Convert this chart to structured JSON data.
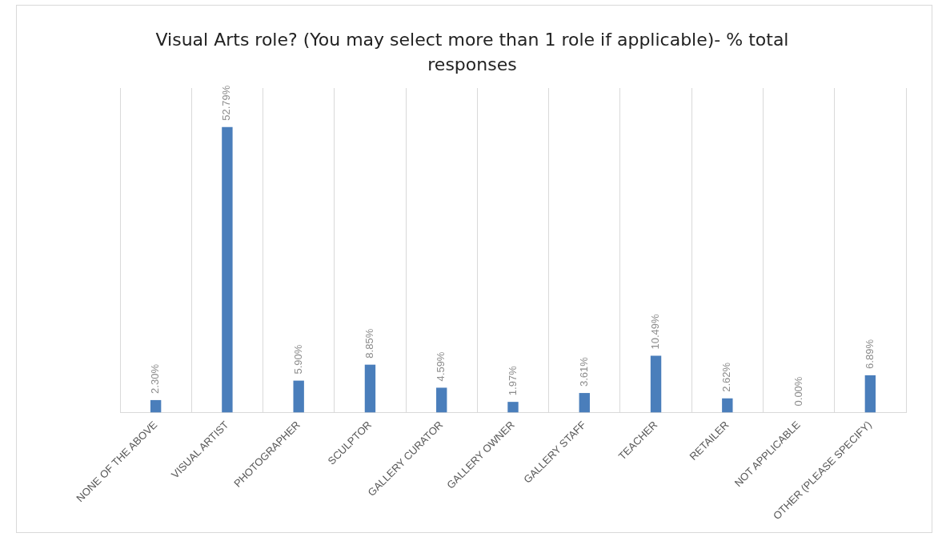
{
  "chart_data": {
    "type": "bar",
    "title": "Visual Arts role? (You may select more than 1 role if applicable)- % total responses",
    "categories": [
      "NONE OF THE ABOVE",
      "VISUAL ARTIST",
      "PHOTOGRAPHER",
      "SCULPTOR",
      "GALLERY CURATOR",
      "GALLERY OWNER",
      "GALLERY STAFF",
      "TEACHER",
      "RETAILER",
      "NOT APPLICABLE",
      "OTHER (PLEASE SPECIFY)"
    ],
    "values": [
      2.3,
      52.79,
      5.9,
      8.85,
      4.59,
      1.97,
      3.61,
      10.49,
      2.62,
      0.0,
      6.89
    ],
    "value_labels": [
      "2.30%",
      "52.79%",
      "5.90%",
      "8.85%",
      "4.59%",
      "1.97%",
      "3.61%",
      "10.49%",
      "2.62%",
      "0.00%",
      "6.89%"
    ],
    "color": "#4a7ebb",
    "grid": "x",
    "legend": false,
    "tick_labels": "x"
  }
}
